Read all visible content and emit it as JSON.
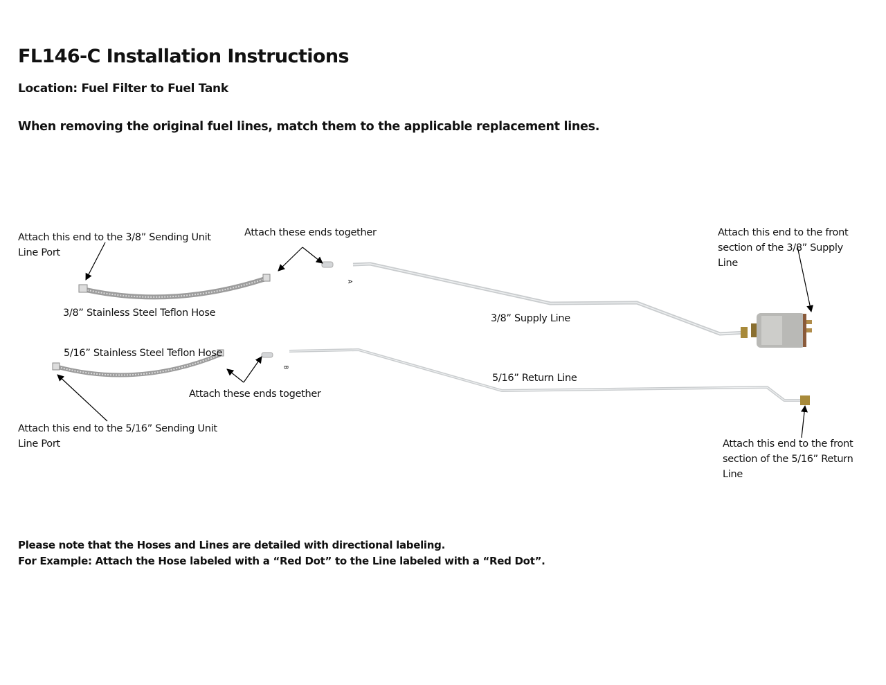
{
  "header": {
    "title": "FL146-C Installation Instructions",
    "location": "Location: Fuel Filter to Fuel Tank",
    "intro": "When removing the original fuel lines, match them to the applicable replacement lines."
  },
  "diagram": {
    "labels": {
      "hose_38_end": [
        "Attach this end to the 3/8” Sending Unit",
        "Line Port"
      ],
      "attach_together_top": "Attach  these ends together",
      "supply_front": [
        "Attach this end to the front",
        "section of the 3/8” Supply",
        "Line"
      ],
      "hose_38": "3/8” Stainless Steel Teflon Hose",
      "supply_line": "3/8” Supply Line",
      "hose_516": "5/16” Stainless Steel Teflon Hose",
      "return_line": "5/16” Return Line",
      "attach_together_bottom": "Attach these ends together",
      "hose_516_end": [
        "Attach this end to the 5/16” Sending Unit",
        "Line Port"
      ],
      "return_front": [
        "Attach this end to the front",
        "section of the 5/16” Return",
        "Line"
      ],
      "tag_a": "A",
      "tag_b": "B"
    },
    "colors": {
      "tube": "#c9ccce",
      "hose": "#a9a9a9",
      "brass": "#a88a3a",
      "filter": "#b9b9b6"
    }
  },
  "footer": {
    "note_1": "Please note that the Hoses and Lines are detailed with directional labeling.",
    "note_2": "For Example: Attach the Hose labeled with a “Red Dot” to the Line labeled with a “Red Dot”."
  }
}
